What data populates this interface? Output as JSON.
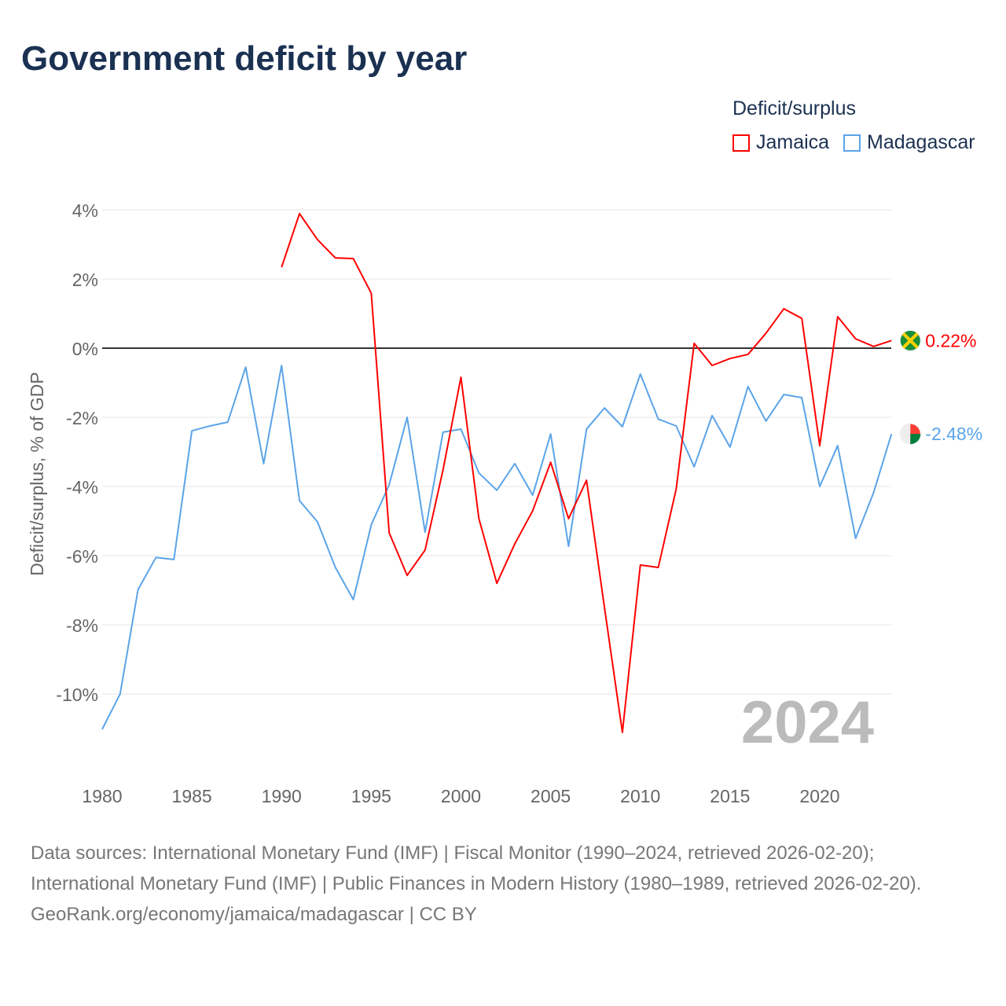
{
  "chart_data": {
    "type": "line",
    "title": "Government deficit by year",
    "ylabel": "Deficit/surplus, % of GDP",
    "xlabel": "",
    "legend_title": "Deficit/surplus",
    "legend_position": "top-right",
    "year_watermark": "2024",
    "xlim": [
      1980,
      2024
    ],
    "ylim": [
      -12,
      4.5
    ],
    "x_ticks": [
      1980,
      1985,
      1990,
      1995,
      2000,
      2005,
      2010,
      2015,
      2020
    ],
    "y_ticks": [
      4,
      2,
      0,
      -2,
      -4,
      -6,
      -8,
      -10
    ],
    "y_tick_labels": [
      "4%",
      "2%",
      "0%",
      "-2%",
      "-4%",
      "-6%",
      "-8%",
      "-10%"
    ],
    "grid": true,
    "series": [
      {
        "name": "Jamaica",
        "color": "#ff0000",
        "end_label": "0.22%",
        "start_year": 1990,
        "values": [
          2.34,
          3.89,
          3.14,
          2.61,
          2.59,
          1.59,
          -5.34,
          -6.57,
          -5.84,
          -3.52,
          -0.84,
          -4.93,
          -6.8,
          -5.66,
          -4.7,
          -3.3,
          -4.93,
          -3.82,
          -7.5,
          -11.11,
          -6.27,
          -6.34,
          -4.07,
          0.14,
          -0.5,
          -0.3,
          -0.18,
          0.43,
          1.14,
          0.86,
          -2.82,
          0.91,
          0.27,
          0.05,
          0.22
        ]
      },
      {
        "name": "Madagascar",
        "color": "#5ba4e8",
        "end_label": "-2.48%",
        "start_year": 1980,
        "values": [
          -11.02,
          -10.0,
          -6.98,
          -6.05,
          -6.11,
          -2.39,
          -2.25,
          -2.14,
          -0.55,
          -3.34,
          -0.5,
          -4.41,
          -5.02,
          -6.34,
          -7.27,
          -5.11,
          -3.95,
          -2.0,
          -5.32,
          -2.43,
          -2.34,
          -3.61,
          -4.11,
          -3.34,
          -4.25,
          -2.48,
          -5.73,
          -2.34,
          -1.73,
          -2.27,
          -0.75,
          -2.05,
          -2.25,
          -3.43,
          -1.95,
          -2.86,
          -1.11,
          -2.11,
          -1.34,
          -1.43,
          -4.0,
          -2.82,
          -5.5,
          -4.18,
          -2.48
        ]
      }
    ]
  },
  "footer": {
    "sources": "Data sources: International Monetary Fund (IMF) | Fiscal Monitor (1990–2024, retrieved 2026-02-20); International Monetary Fund (IMF) | Public Finances in Modern History (1980–1989, retrieved 2026-02-20).",
    "credit": "GeoRank.org/economy/jamaica/madagascar | CC BY"
  }
}
